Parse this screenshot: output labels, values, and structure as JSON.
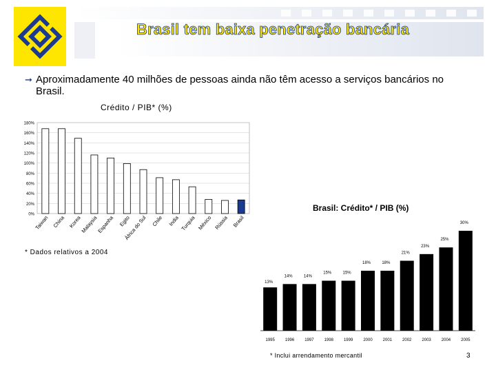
{
  "header": {
    "title": "Brasil tem baixa penetração bancária"
  },
  "bullet": {
    "text": "Aproximadamente 40 milhões de pessoas ainda não têm acesso a serviços bancários no Brasil."
  },
  "colors": {
    "logo_yellow": "#ffe600",
    "logo_blue": "#1a3b8f",
    "bar_black": "#000000",
    "bar_brazil": "#1a3b8f"
  },
  "chart_data": [
    {
      "type": "bar",
      "title": "Crédito / PIB* (%)",
      "categories": [
        "Taiwan",
        "China",
        "Korea",
        "Malaysia",
        "Espanha",
        "Egito",
        "África do Sul",
        "Chile",
        "India",
        "Turquia",
        "México",
        "Rússia",
        "Brasil"
      ],
      "values": [
        168,
        168,
        149,
        116,
        110,
        99,
        87,
        71,
        67,
        53,
        28,
        26,
        27
      ],
      "highlight": "Brasil",
      "y_ticks": [
        "0%",
        "20%",
        "40%",
        "60%",
        "80%",
        "100%",
        "120%",
        "140%",
        "160%",
        "180%"
      ],
      "ylim": [
        0,
        180
      ],
      "grid": true,
      "footnote": "* Dados relativos a 2004"
    },
    {
      "type": "bar",
      "title": "Brasil: Crédito* / PIB (%)",
      "categories": [
        "1995",
        "1996",
        "1997",
        "1998",
        "1999",
        "2000",
        "2001",
        "2002",
        "2003",
        "2004",
        "2005"
      ],
      "values": [
        13,
        14,
        14,
        15,
        15,
        18,
        18,
        21,
        23,
        25,
        30
      ],
      "labels": [
        "13%",
        "14%",
        "14%",
        "15%",
        "15%",
        "18%",
        "18%",
        "21%",
        "23%",
        "25%",
        "30%"
      ],
      "footnote": "* Inclui arrendamento mercantil"
    }
  ],
  "page_number": "3"
}
